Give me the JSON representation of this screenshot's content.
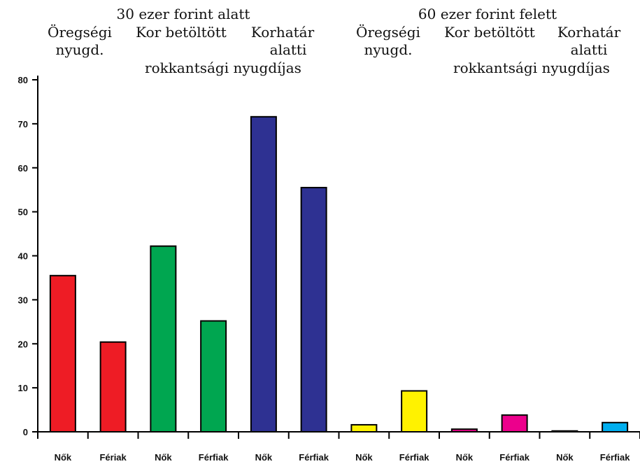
{
  "chart_data": {
    "type": "bar",
    "group_headers": [
      {
        "title": "30 ezer forint alatt",
        "subgroups": [
          [
            "Öregségi",
            "nyugd."
          ],
          [
            "Kor betöltött",
            "",
            "rokkantsági nyugdíjas"
          ],
          [
            "Korhatár",
            "alatti"
          ]
        ]
      },
      {
        "title": "60 ezer forint felett",
        "subgroups": [
          [
            "Öregségi",
            "nyugd."
          ],
          [
            "Kor betöltött",
            "",
            "rokkantsági nyugdíjas"
          ],
          [
            "Korhatár",
            "alatti"
          ]
        ]
      }
    ],
    "categories": [
      "Nők",
      "Fériak",
      "Nők",
      "Férfiak",
      "Nők",
      "Férfiak",
      "Nők",
      "Férfiak",
      "Nők",
      "Férfiak",
      "Nők",
      "Férfiak"
    ],
    "values": [
      35.5,
      20.4,
      42.2,
      25.2,
      71.6,
      55.5,
      1.6,
      9.3,
      0.6,
      3.8,
      0.2,
      2.1
    ],
    "bar_colors": [
      "#ee1c25",
      "#ee1c25",
      "#00a650",
      "#00a650",
      "#2e3192",
      "#2e3192",
      "#fff200",
      "#fff200",
      "#ec008c",
      "#ec008c",
      "#231f20",
      "#00aeef"
    ],
    "ylim": [
      0,
      80
    ],
    "yticks": [
      "0",
      "10",
      "20",
      "30",
      "40",
      "50",
      "60",
      "70",
      "80"
    ],
    "grid": false,
    "xlabel": "",
    "ylabel": ""
  }
}
